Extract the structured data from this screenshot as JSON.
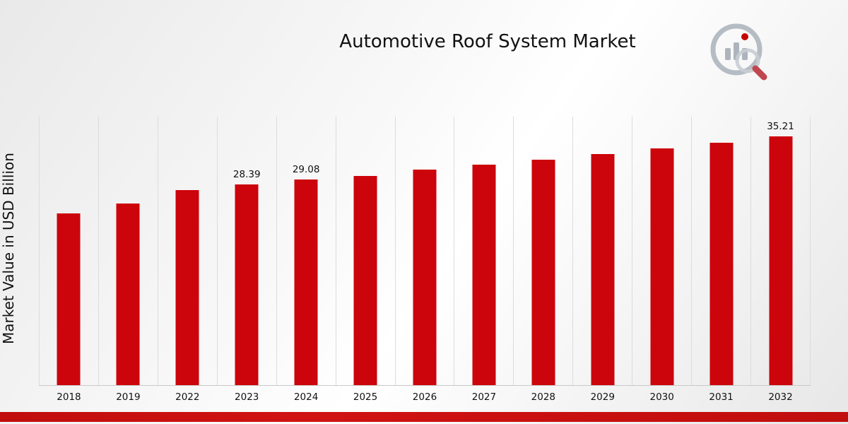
{
  "title": "Automotive Roof System Market",
  "ylabel": "Market Value in USD Billion",
  "logo": {
    "name": "market-research-logo"
  },
  "colors": {
    "bar": "#cc040c",
    "gridline": "#dcdcdc",
    "bottom_stripe": "#c10d0d",
    "logo_gray": "#aeb4bd",
    "logo_red": "#c40404"
  },
  "chart_data": {
    "type": "bar",
    "title": "Automotive Roof System Market",
    "xlabel": "",
    "ylabel": "Market Value in USD Billion",
    "categories": [
      "2018",
      "2019",
      "2022",
      "2023",
      "2024",
      "2025",
      "2026",
      "2027",
      "2028",
      "2029",
      "2030",
      "2031",
      "2032"
    ],
    "values": [
      24.3,
      25.7,
      27.6,
      28.39,
      29.08,
      29.6,
      30.5,
      31.2,
      31.9,
      32.7,
      33.5,
      34.3,
      35.21
    ],
    "value_labels": [
      null,
      null,
      null,
      "28.39",
      "29.08",
      null,
      null,
      null,
      null,
      null,
      null,
      null,
      "35.21"
    ],
    "ylim": [
      0,
      38
    ],
    "grid": "vertical",
    "legend": "none",
    "bar_color": "#cc040c"
  }
}
